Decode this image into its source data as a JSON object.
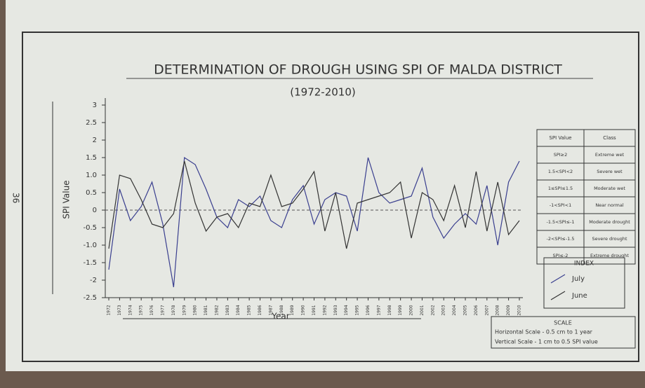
{
  "chart_data": {
    "type": "line",
    "title": "DETERMINATION OF DROUGH USING SPI OF MALDA DISTRICT",
    "subtitle": "(1972-2010)",
    "x_label": "Year",
    "y_label": "SPI Value",
    "page_number": "36",
    "categories": [
      "1972",
      "1973",
      "1974",
      "1975",
      "1976",
      "1977",
      "1978",
      "1979",
      "1980",
      "1981",
      "1982",
      "1983",
      "1984",
      "1985",
      "1986",
      "1987",
      "1988",
      "1989",
      "1990",
      "1991",
      "1992",
      "1993",
      "1994",
      "1995",
      "1996",
      "1997",
      "1998",
      "1999",
      "2000",
      "2001",
      "2002",
      "2003",
      "2004",
      "2005",
      "2006",
      "2007",
      "2008",
      "2009",
      "2010"
    ],
    "series": [
      {
        "name": "July",
        "color": "#3a3f8f",
        "values": [
          -1.7,
          0.6,
          -0.3,
          0.1,
          0.8,
          -0.4,
          -2.2,
          1.5,
          1.3,
          0.6,
          -0.2,
          -0.5,
          0.3,
          0.1,
          0.4,
          -0.3,
          -0.5,
          0.3,
          0.7,
          -0.4,
          0.3,
          0.5,
          0.4,
          -0.6,
          1.5,
          0.5,
          0.2,
          0.3,
          0.4,
          1.2,
          -0.2,
          -0.8,
          -0.4,
          -0.1,
          -0.4,
          0.7,
          -1.0,
          0.8,
          1.4
        ]
      },
      {
        "name": "June",
        "color": "#333333",
        "values": [
          -1.1,
          1.0,
          0.9,
          0.3,
          -0.4,
          -0.5,
          -0.1,
          1.4,
          0.2,
          -0.6,
          -0.2,
          -0.1,
          -0.5,
          0.2,
          0.1,
          1.0,
          0.1,
          0.2,
          0.6,
          1.1,
          -0.6,
          0.5,
          -1.1,
          0.2,
          0.3,
          0.4,
          0.5,
          0.8,
          -0.8,
          0.5,
          0.3,
          -0.3,
          0.7,
          -0.5,
          1.1,
          -0.6,
          0.8,
          -0.7,
          -0.3
        ]
      }
    ],
    "ylim": [
      -2.5,
      3
    ],
    "yticks": [
      -2.5,
      -2,
      -1.5,
      {
        "value": -1,
        "label": "-1.0"
      },
      -0.5,
      0,
      0.5,
      {
        "value": 1,
        "label": "1.0"
      },
      1.5,
      2,
      2.5,
      3
    ],
    "zero_line": true,
    "index_title": "INDEX",
    "spi_table": {
      "header": [
        "SPI Value",
        "Class"
      ],
      "rows": [
        [
          "SPI≥2",
          "Extreme wet"
        ],
        [
          "1.5<SPI<2",
          "Severe wet"
        ],
        [
          "1≤SPI≤1.5",
          "Moderate wet"
        ],
        [
          "-1<SPI<1",
          "Near normal"
        ],
        [
          "-1.5<SPI≤-1",
          "Moderate drought"
        ],
        [
          "-2<SPI≤-1.5",
          "Severe drought"
        ],
        [
          "SPI≤-2",
          "Extreme drought"
        ]
      ]
    },
    "scale": {
      "title": "SCALE",
      "lines": [
        "Horizontal Scale - 0.5 cm to 1 year",
        "Vertical Scale - 1 cm to 0.5 SPI value"
      ]
    }
  }
}
